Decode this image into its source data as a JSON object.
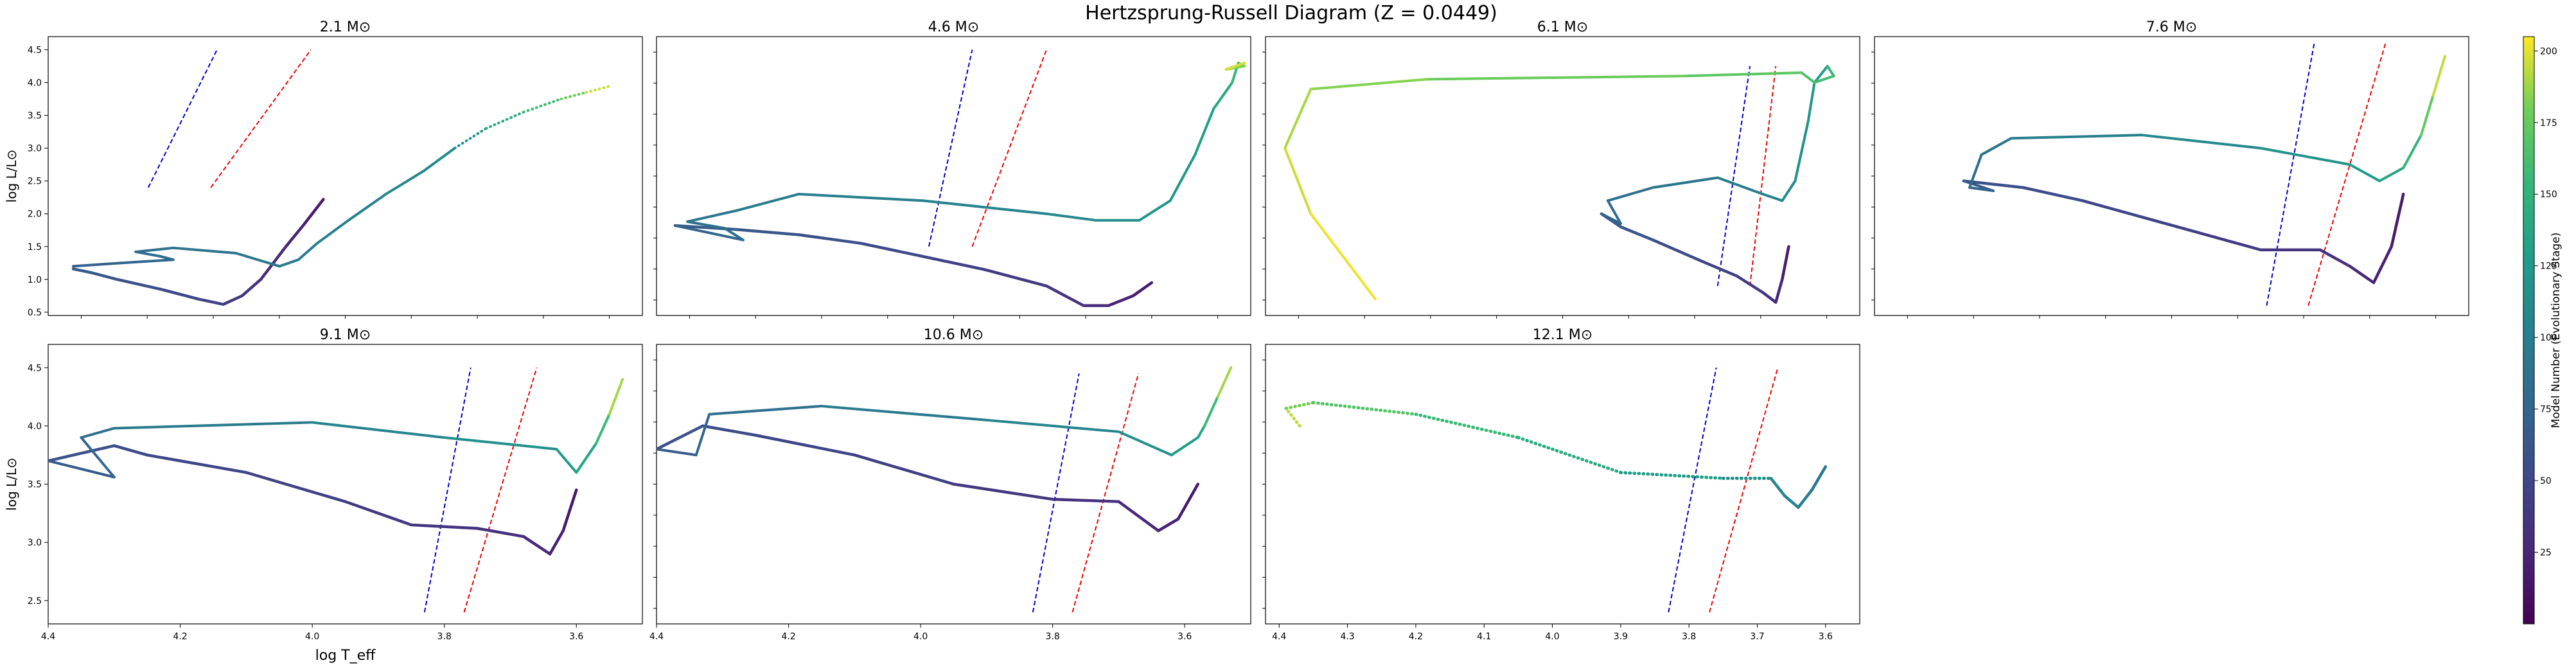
{
  "figure": {
    "title": "Hertzsprung-Russell Diagram (Z = 0.0449)",
    "colorbar": {
      "label": "Model Number (Evolutionary Stage)",
      "min": 0,
      "max": 205,
      "ticks": [
        25,
        50,
        75,
        100,
        125,
        150,
        175,
        200
      ],
      "colormap": "viridis"
    },
    "colors": {
      "blue_edge": "#0000cc",
      "red_edge": "#ee0000"
    }
  },
  "chart_data": [
    {
      "type": "line",
      "title": "2.1 M⊙",
      "xlabel": "",
      "ylabel": "log L/L⊙",
      "xlim": [
        4.4,
        3.45
      ],
      "ylim": [
        0.45,
        4.7
      ],
      "xticks": [],
      "yticks": [
        0.5,
        1.0,
        1.5,
        2.0,
        2.5,
        3.0,
        3.5,
        4.0,
        4.5
      ],
      "instability_strip": {
        "blue": [
          [
            4.24,
            2.4
          ],
          [
            4.13,
            4.5
          ]
        ],
        "red": [
          [
            4.14,
            2.4
          ],
          [
            3.98,
            4.5
          ]
        ]
      },
      "tracks": [
        {
          "c": [
            15,
            70
          ],
          "w": 4.5,
          "pts": [
            [
              3.96,
              2.22
            ],
            [
              3.99,
              1.85
            ],
            [
              4.02,
              1.5
            ],
            [
              4.06,
              1.0
            ],
            [
              4.09,
              0.75
            ],
            [
              4.12,
              0.62
            ],
            [
              4.16,
              0.7
            ],
            [
              4.22,
              0.85
            ],
            [
              4.29,
              1.0
            ],
            [
              4.33,
              1.1
            ],
            [
              4.36,
              1.16
            ]
          ]
        },
        {
          "c": [
            70,
            110
          ],
          "w": 4,
          "pts": [
            [
              4.36,
              1.2
            ],
            [
              4.3,
              1.24
            ],
            [
              4.25,
              1.27
            ],
            [
              4.2,
              1.3
            ],
            [
              4.22,
              1.35
            ],
            [
              4.26,
              1.42
            ],
            [
              4.2,
              1.48
            ],
            [
              4.1,
              1.4
            ],
            [
              4.03,
              1.2
            ],
            [
              4.0,
              1.3
            ],
            [
              3.97,
              1.55
            ],
            [
              3.92,
              1.9
            ],
            [
              3.86,
              2.3
            ],
            [
              3.8,
              2.65
            ],
            [
              3.75,
              3.0
            ]
          ]
        },
        {
          "c": [
            110,
            205
          ],
          "w": 4,
          "dots": true,
          "pts": [
            [
              3.75,
              3.0
            ],
            [
              3.7,
              3.3
            ],
            [
              3.64,
              3.55
            ],
            [
              3.58,
              3.75
            ],
            [
              3.54,
              3.85
            ],
            [
              3.5,
              3.95
            ]
          ]
        }
      ]
    },
    {
      "type": "line",
      "title": "4.6 M⊙",
      "xlabel": "",
      "ylabel": "",
      "xlim": [
        4.43,
        3.47
      ],
      "ylim": [
        0.45,
        4.7
      ],
      "xticks": [],
      "yticks": [],
      "instability_strip": {
        "blue": [
          [
            3.99,
            1.5
          ],
          [
            3.92,
            4.5
          ]
        ],
        "red": [
          [
            3.92,
            1.5
          ],
          [
            3.8,
            4.5
          ]
        ]
      },
      "tracks": [
        {
          "c": [
            15,
            70
          ],
          "w": 4.5,
          "pts": [
            [
              3.63,
              0.95
            ],
            [
              3.66,
              0.75
            ],
            [
              3.7,
              0.6
            ],
            [
              3.74,
              0.6
            ],
            [
              3.8,
              0.9
            ],
            [
              3.9,
              1.15
            ],
            [
              4.0,
              1.35
            ],
            [
              4.1,
              1.55
            ],
            [
              4.2,
              1.68
            ],
            [
              4.3,
              1.76
            ],
            [
              4.4,
              1.82
            ]
          ]
        },
        {
          "c": [
            70,
            130
          ],
          "w": 4,
          "pts": [
            [
              4.4,
              1.82
            ],
            [
              4.34,
              1.7
            ],
            [
              4.29,
              1.6
            ],
            [
              4.32,
              1.78
            ],
            [
              4.38,
              1.88
            ],
            [
              4.3,
              2.05
            ],
            [
              4.2,
              2.3
            ],
            [
              4.0,
              2.2
            ],
            [
              3.8,
              2.0
            ],
            [
              3.72,
              1.9
            ],
            [
              3.65,
              1.9
            ],
            [
              3.6,
              2.2
            ],
            [
              3.56,
              2.9
            ],
            [
              3.53,
              3.6
            ]
          ]
        },
        {
          "c": [
            130,
            205
          ],
          "w": 4,
          "pts": [
            [
              3.53,
              3.6
            ],
            [
              3.5,
              4.0
            ],
            [
              3.49,
              4.3
            ],
            [
              3.48,
              4.25
            ],
            [
              3.51,
              4.2
            ],
            [
              3.48,
              4.3
            ]
          ]
        }
      ]
    },
    {
      "type": "line",
      "title": "6.1 M⊙",
      "xlabel": "",
      "ylabel": "",
      "xlim": [
        4.45,
        3.53
      ],
      "ylim": [
        0.45,
        4.7
      ],
      "xticks": [],
      "yticks": [],
      "instability_strip": {
        "blue": [
          [
            3.75,
            0.9
          ],
          [
            3.7,
            4.25
          ]
        ],
        "red": [
          [
            3.7,
            0.9
          ],
          [
            3.66,
            4.25
          ]
        ]
      },
      "tracks": [
        {
          "c": [
            15,
            70
          ],
          "w": 4.5,
          "pts": [
            [
              3.64,
              1.5
            ],
            [
              3.65,
              1.0
            ],
            [
              3.66,
              0.65
            ],
            [
              3.68,
              0.8
            ],
            [
              3.72,
              1.05
            ],
            [
              3.78,
              1.3
            ],
            [
              3.85,
              1.6
            ],
            [
              3.9,
              1.8
            ],
            [
              3.93,
              2.0
            ]
          ]
        },
        {
          "c": [
            70,
            130
          ],
          "w": 4,
          "pts": [
            [
              3.93,
              2.0
            ],
            [
              3.9,
              1.85
            ],
            [
              3.92,
              2.2
            ],
            [
              3.85,
              2.4
            ],
            [
              3.75,
              2.55
            ],
            [
              3.68,
              2.3
            ],
            [
              3.65,
              2.2
            ],
            [
              3.63,
              2.5
            ],
            [
              3.61,
              3.4
            ],
            [
              3.6,
              4.0
            ],
            [
              3.58,
              4.25
            ]
          ]
        },
        {
          "c": [
            150,
            205
          ],
          "w": 4,
          "pts": [
            [
              3.58,
              4.25
            ],
            [
              3.57,
              4.1
            ],
            [
              3.6,
              4.0
            ],
            [
              3.62,
              4.15
            ],
            [
              3.8,
              4.1
            ],
            [
              4.2,
              4.05
            ],
            [
              4.38,
              3.9
            ],
            [
              4.42,
              3.0
            ],
            [
              4.38,
              2.0
            ],
            [
              4.28,
              0.7
            ]
          ]
        }
      ]
    },
    {
      "type": "line",
      "title": "7.6 M⊙",
      "xlabel": "",
      "ylabel": "",
      "xlim": [
        4.45,
        3.45
      ],
      "ylim": [
        0.45,
        4.7
      ],
      "xticks": [],
      "yticks": [],
      "instability_strip": {
        "blue": [
          [
            3.79,
            0.6
          ],
          [
            3.71,
            4.6
          ]
        ],
        "red": [
          [
            3.72,
            0.6
          ],
          [
            3.59,
            4.6
          ]
        ]
      },
      "tracks": [
        {
          "c": [
            15,
            60
          ],
          "w": 4.5,
          "pts": [
            [
              3.56,
              2.3
            ],
            [
              3.58,
              1.5
            ],
            [
              3.61,
              0.95
            ],
            [
              3.65,
              1.2
            ],
            [
              3.7,
              1.45
            ],
            [
              3.8,
              1.45
            ],
            [
              3.9,
              1.7
            ],
            [
              4.0,
              1.95
            ],
            [
              4.1,
              2.2
            ],
            [
              4.2,
              2.4
            ],
            [
              4.3,
              2.5
            ]
          ]
        },
        {
          "c": [
            60,
            140
          ],
          "w": 4,
          "pts": [
            [
              4.3,
              2.5
            ],
            [
              4.25,
              2.35
            ],
            [
              4.29,
              2.4
            ],
            [
              4.27,
              2.9
            ],
            [
              4.22,
              3.15
            ],
            [
              4.0,
              3.2
            ],
            [
              3.8,
              3.0
            ],
            [
              3.65,
              2.75
            ],
            [
              3.6,
              2.5
            ],
            [
              3.56,
              2.7
            ]
          ]
        },
        {
          "c": [
            140,
            205
          ],
          "w": 4,
          "pts": [
            [
              3.56,
              2.7
            ],
            [
              3.53,
              3.2
            ],
            [
              3.51,
              3.8
            ],
            [
              3.49,
              4.4
            ]
          ]
        }
      ]
    },
    {
      "type": "line",
      "title": "9.1 M⊙",
      "xlabel": "log T_eff",
      "ylabel": "log L/L⊙",
      "xlim": [
        4.4,
        3.5
      ],
      "ylim": [
        2.3,
        4.7
      ],
      "xticks": [
        4.4,
        4.2,
        4.0,
        3.8,
        3.6
      ],
      "yticks": [
        2.5,
        3.0,
        3.5,
        4.0,
        4.5
      ],
      "instability_strip": {
        "blue": [
          [
            3.83,
            2.4
          ],
          [
            3.76,
            4.5
          ]
        ],
        "red": [
          [
            3.77,
            2.4
          ],
          [
            3.66,
            4.5
          ]
        ]
      },
      "tracks": [
        {
          "c": [
            15,
            60
          ],
          "w": 4.5,
          "pts": [
            [
              3.6,
              3.45
            ],
            [
              3.62,
              3.1
            ],
            [
              3.64,
              2.9
            ],
            [
              3.68,
              3.05
            ],
            [
              3.75,
              3.12
            ],
            [
              3.85,
              3.15
            ],
            [
              3.95,
              3.35
            ],
            [
              4.1,
              3.6
            ],
            [
              4.25,
              3.75
            ],
            [
              4.3,
              3.83
            ],
            [
              4.4,
              3.7
            ]
          ]
        },
        {
          "c": [
            60,
            140
          ],
          "w": 4,
          "pts": [
            [
              4.4,
              3.7
            ],
            [
              4.3,
              3.56
            ],
            [
              4.35,
              3.9
            ],
            [
              4.3,
              3.98
            ],
            [
              4.0,
              4.03
            ],
            [
              3.8,
              3.9
            ],
            [
              3.63,
              3.8
            ],
            [
              3.6,
              3.6
            ],
            [
              3.57,
              3.85
            ]
          ]
        },
        {
          "c": [
            140,
            205
          ],
          "w": 4,
          "pts": [
            [
              3.57,
              3.85
            ],
            [
              3.55,
              4.1
            ],
            [
              3.53,
              4.4
            ]
          ]
        }
      ]
    },
    {
      "type": "line",
      "title": "10.6 M⊙",
      "xlabel": "",
      "ylabel": "",
      "xlim": [
        4.4,
        3.5
      ],
      "ylim": [
        2.3,
        4.7
      ],
      "xticks": [
        4.4,
        4.2,
        4.0,
        3.8,
        3.6
      ],
      "yticks": [],
      "instability_strip": {
        "blue": [
          [
            3.83,
            2.4
          ],
          [
            3.76,
            4.45
          ]
        ],
        "red": [
          [
            3.77,
            2.4
          ],
          [
            3.67,
            4.45
          ]
        ]
      },
      "tracks": [
        {
          "c": [
            15,
            60
          ],
          "w": 4.5,
          "pts": [
            [
              3.58,
              3.5
            ],
            [
              3.61,
              3.2
            ],
            [
              3.64,
              3.1
            ],
            [
              3.7,
              3.35
            ],
            [
              3.8,
              3.37
            ],
            [
              3.95,
              3.5
            ],
            [
              4.1,
              3.75
            ],
            [
              4.25,
              3.92
            ],
            [
              4.33,
              4.0
            ],
            [
              4.4,
              3.8
            ]
          ]
        },
        {
          "c": [
            60,
            140
          ],
          "w": 4,
          "pts": [
            [
              4.4,
              3.8
            ],
            [
              4.34,
              3.75
            ],
            [
              4.32,
              4.1
            ],
            [
              4.15,
              4.17
            ],
            [
              3.9,
              4.05
            ],
            [
              3.7,
              3.95
            ],
            [
              3.62,
              3.75
            ],
            [
              3.58,
              3.9
            ],
            [
              3.57,
              4.0
            ]
          ]
        },
        {
          "c": [
            140,
            205
          ],
          "w": 4,
          "pts": [
            [
              3.57,
              4.0
            ],
            [
              3.55,
              4.25
            ],
            [
              3.53,
              4.5
            ]
          ]
        }
      ]
    },
    {
      "type": "line",
      "title": "12.1 M⊙",
      "xlabel": "",
      "ylabel": "",
      "xlim": [
        4.42,
        3.55
      ],
      "ylim": [
        2.3,
        4.7
      ],
      "xticks": [
        4.4,
        4.3,
        4.2,
        4.1,
        4.0,
        3.9,
        3.8,
        3.7,
        3.6
      ],
      "yticks": [],
      "instability_strip": {
        "blue": [
          [
            3.83,
            2.4
          ],
          [
            3.76,
            4.5
          ]
        ],
        "red": [
          [
            3.77,
            2.4
          ],
          [
            3.67,
            4.5
          ]
        ]
      },
      "tracks": [
        {
          "c": [
            200,
            110
          ],
          "w": 5,
          "dots": true,
          "pts": [
            [
              4.37,
              4.0
            ],
            [
              4.39,
              4.15
            ],
            [
              4.35,
              4.2
            ],
            [
              4.2,
              4.1
            ],
            [
              4.05,
              3.9
            ],
            [
              3.9,
              3.6
            ],
            [
              3.75,
              3.55
            ],
            [
              3.68,
              3.55
            ]
          ]
        },
        {
          "c": [
            110,
            90
          ],
          "w": 4.5,
          "pts": [
            [
              3.68,
              3.55
            ],
            [
              3.66,
              3.4
            ],
            [
              3.64,
              3.3
            ],
            [
              3.62,
              3.45
            ],
            [
              3.6,
              3.65
            ]
          ]
        }
      ]
    }
  ]
}
